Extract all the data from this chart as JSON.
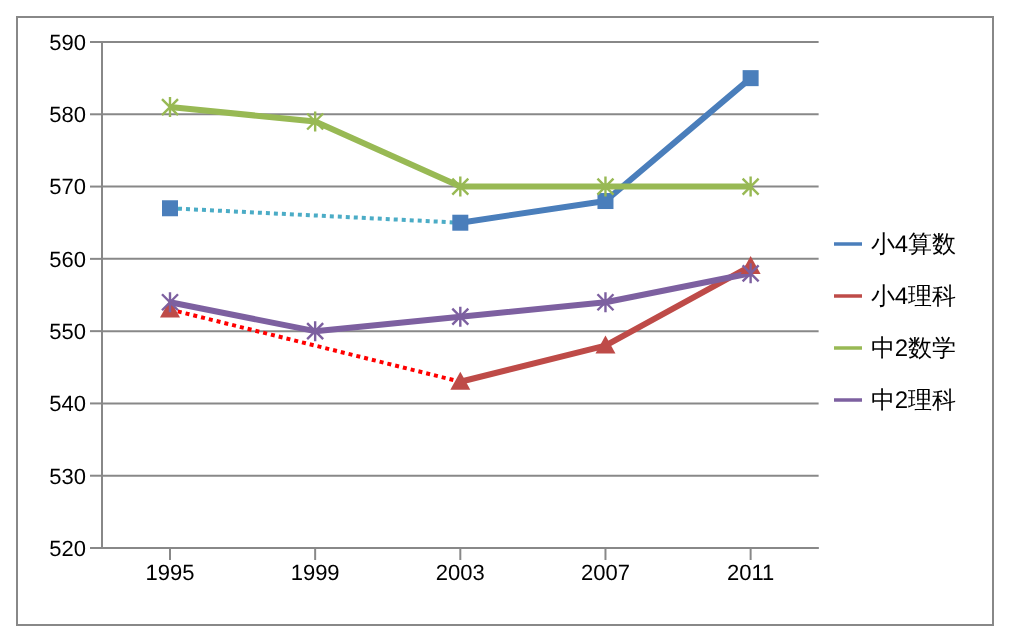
{
  "chart_data": {
    "type": "line",
    "categories": [
      "1995",
      "1999",
      "2003",
      "2007",
      "2011"
    ],
    "series": [
      {
        "name": "小4算数",
        "color": "#4a7ebb",
        "marker": "square",
        "values": [
          567,
          null,
          565,
          568,
          585
        ]
      },
      {
        "name": "小4理科",
        "color": "#be4b48",
        "marker": "triangle",
        "values": [
          553,
          null,
          543,
          548,
          559
        ]
      },
      {
        "name": "中2数学",
        "color": "#98b954",
        "marker": "cross",
        "values": [
          581,
          579,
          570,
          570,
          570
        ]
      },
      {
        "name": "中2理科",
        "color": "#7d60a0",
        "marker": "cross",
        "values": [
          554,
          550,
          552,
          554,
          558
        ]
      },
      {
        "color": "#4bacc6",
        "marker": "none",
        "line_style": "dotted",
        "values": [
          567,
          null,
          565,
          null,
          null
        ]
      },
      {
        "color": "#ff0000",
        "marker": "none",
        "line_style": "dotted",
        "values": [
          553,
          null,
          543,
          null,
          null
        ]
      }
    ],
    "ylim": [
      520,
      590
    ],
    "yticks": [
      520,
      530,
      540,
      550,
      560,
      570,
      580,
      590
    ],
    "grid": "y",
    "legend": "right"
  }
}
